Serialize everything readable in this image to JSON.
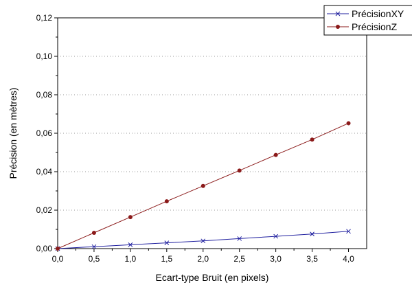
{
  "chart_data": {
    "type": "line",
    "title": "",
    "xlabel": "Ecart-type Bruit (en pixels)",
    "ylabel": "Précision (en mètres)",
    "xlim": [
      0,
      4.25
    ],
    "ylim": [
      0,
      0.12
    ],
    "x_ticks": [
      0,
      0.5,
      1.0,
      1.5,
      2.0,
      2.5,
      3.0,
      3.5,
      4.0
    ],
    "x_tick_labels": [
      "0,0",
      "0,5",
      "1,0",
      "1,5",
      "2,0",
      "2,5",
      "3,0",
      "3,5",
      "4,0"
    ],
    "y_ticks": [
      0,
      0.02,
      0.04,
      0.06,
      0.08,
      0.1,
      0.12
    ],
    "y_tick_labels": [
      "0,00",
      "0,02",
      "0,04",
      "0,06",
      "0,08",
      "0,10",
      "0,12"
    ],
    "grid": "horizontal dotted",
    "legend_position": "top-right",
    "x": [
      0,
      0.5,
      1.0,
      1.5,
      2.0,
      2.5,
      3.0,
      3.5,
      4.0
    ],
    "series": [
      {
        "name": "PrécisionXY",
        "color": "#1f1f9f",
        "marker": "x",
        "values": [
          0,
          0.001,
          0.002,
          0.003,
          0.004,
          0.0052,
          0.0064,
          0.0076,
          0.009
        ]
      },
      {
        "name": "PrécisionZ",
        "color": "#8b1a1a",
        "marker": "circle",
        "values": [
          0,
          0.0082,
          0.0164,
          0.0246,
          0.0326,
          0.0406,
          0.0487,
          0.0567,
          0.0652
        ]
      }
    ]
  }
}
